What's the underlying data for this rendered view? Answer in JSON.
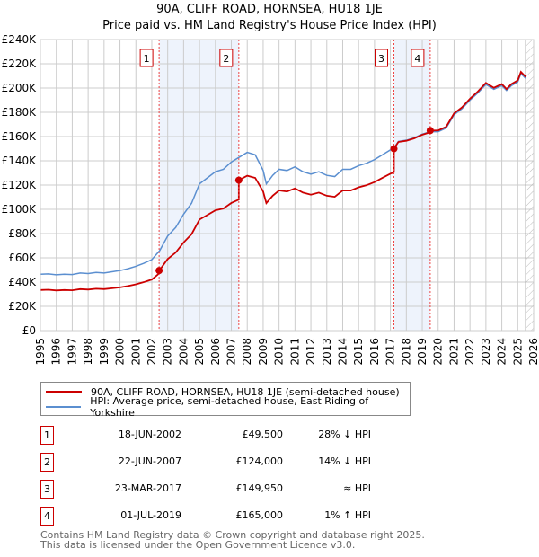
{
  "chart_data": {
    "type": "line",
    "title": "90A, CLIFF ROAD, HORNSEA, HU18 1JE",
    "subtitle": "Price paid vs. HM Land Registry's House Price Index (HPI)",
    "xlim": [
      1995,
      2026
    ],
    "ylim": [
      0,
      240000
    ],
    "x_ticks": [
      "1995",
      "1996",
      "1997",
      "1998",
      "1999",
      "2000",
      "2001",
      "2002",
      "2003",
      "2004",
      "2005",
      "2006",
      "2007",
      "2008",
      "2009",
      "2010",
      "2011",
      "2012",
      "2013",
      "2014",
      "2015",
      "2016",
      "2017",
      "2018",
      "2019",
      "2020",
      "2021",
      "2022",
      "2023",
      "2024",
      "2025",
      "2026"
    ],
    "y_ticks": [
      {
        "v": 0,
        "label": "£0"
      },
      {
        "v": 20000,
        "label": "£20K"
      },
      {
        "v": 40000,
        "label": "£40K"
      },
      {
        "v": 60000,
        "label": "£60K"
      },
      {
        "v": 80000,
        "label": "£80K"
      },
      {
        "v": 100000,
        "label": "£100K"
      },
      {
        "v": 120000,
        "label": "£120K"
      },
      {
        "v": 140000,
        "label": "£140K"
      },
      {
        "v": 160000,
        "label": "£160K"
      },
      {
        "v": 180000,
        "label": "£180K"
      },
      {
        "v": 200000,
        "label": "£200K"
      },
      {
        "v": 220000,
        "label": "£220K"
      },
      {
        "v": 240000,
        "label": "£240K"
      }
    ],
    "grid": true,
    "forecast_from": 2025.5,
    "series": [
      {
        "name": "90A, CLIFF ROAD, HORNSEA, HU18 1JE (semi-detached house)",
        "color": "#cc0000",
        "derived_from_hpi_and_sales": true
      },
      {
        "name": "HPI: Average price, semi-detached house, East Riding of Yorkshire",
        "color": "#5b8fd0",
        "x": [
          1995,
          1995.5,
          1996,
          1996.5,
          1997,
          1997.5,
          1998,
          1998.5,
          1999,
          1999.5,
          2000,
          2000.5,
          2001,
          2001.5,
          2002,
          2002.5,
          2003,
          2003.5,
          2004,
          2004.5,
          2005,
          2005.5,
          2006,
          2006.5,
          2007,
          2007.5,
          2008,
          2008.5,
          2009,
          2009.2,
          2009.6,
          2010,
          2010.5,
          2011,
          2011.5,
          2012,
          2012.5,
          2013,
          2013.5,
          2014,
          2014.5,
          2015,
          2015.5,
          2016,
          2016.5,
          2017,
          2017.2,
          2017.5,
          2018,
          2018.5,
          2019,
          2019.5,
          2020,
          2020.5,
          2021,
          2021.5,
          2022,
          2022.5,
          2023,
          2023.5,
          2024,
          2024.3,
          2024.6,
          2025,
          2025.2,
          2025.5
        ],
        "y": [
          46500,
          46800,
          46000,
          46500,
          46200,
          47500,
          47000,
          48000,
          47500,
          48500,
          49500,
          51000,
          53000,
          55500,
          58500,
          66000,
          78000,
          85000,
          96000,
          105000,
          121000,
          126000,
          131000,
          133000,
          139000,
          143000,
          147000,
          145000,
          132000,
          121000,
          128000,
          133000,
          132000,
          135000,
          131000,
          129000,
          131000,
          128000,
          127000,
          133000,
          133000,
          136000,
          138000,
          141000,
          145000,
          149000,
          150000,
          156000,
          157000,
          159000,
          162000,
          164000,
          164000,
          167000,
          178000,
          183000,
          190000,
          196000,
          203000,
          199000,
          202000,
          198000,
          202000,
          205000,
          212000,
          208000
        ]
      }
    ],
    "sales": [
      {
        "id": "1",
        "x": 2002.46,
        "date": "18-JUN-2002",
        "price": 49500,
        "price_label": "£49,500",
        "hpi": "28% ↓ HPI"
      },
      {
        "id": "2",
        "x": 2007.47,
        "date": "22-JUN-2007",
        "price": 124000,
        "price_label": "£124,000",
        "hpi": "14% ↓ HPI"
      },
      {
        "id": "3",
        "x": 2017.22,
        "date": "23-MAR-2017",
        "price": 149950,
        "price_label": "£149,950",
        "hpi": "≈ HPI"
      },
      {
        "id": "4",
        "x": 2019.5,
        "date": "01-JUL-2019",
        "price": 165000,
        "price_label": "£165,000",
        "hpi": "1% ↑ HPI"
      }
    ],
    "colors": {
      "shade": "#eef3fc",
      "vline": "#ee4444"
    }
  },
  "footer": {
    "line1": "Contains HM Land Registry data © Crown copyright and database right 2025.",
    "line2": "This data is licensed under the Open Government Licence v3.0."
  }
}
